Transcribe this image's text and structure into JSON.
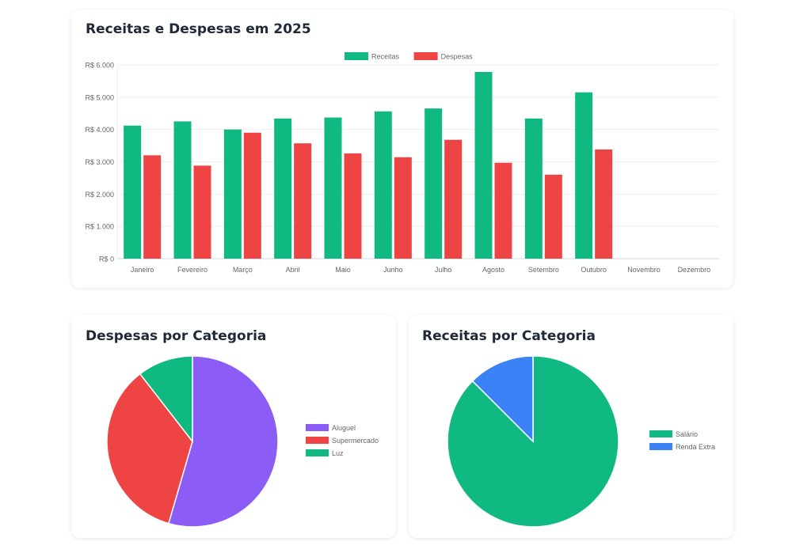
{
  "chart_data": [
    {
      "type": "bar",
      "title": "Receitas e Despesas em 2025",
      "categories": [
        "Janeiro",
        "Fevereiro",
        "Março",
        "Abril",
        "Maio",
        "Junho",
        "Julho",
        "Agosto",
        "Setembro",
        "Outubro",
        "Novembro",
        "Dezembro"
      ],
      "series": [
        {
          "name": "Receitas",
          "color": "#10b981",
          "values": [
            4120,
            4250,
            4000,
            4340,
            4370,
            4560,
            4650,
            5780,
            4340,
            5150,
            null,
            null
          ]
        },
        {
          "name": "Despesas",
          "color": "#ef4444",
          "values": [
            3200,
            2880,
            3900,
            3570,
            3260,
            3140,
            3680,
            2970,
            2600,
            3380,
            null,
            null
          ]
        }
      ],
      "ylim": [
        0,
        6000
      ],
      "yticks": [
        0,
        1000,
        2000,
        3000,
        4000,
        5000,
        6000
      ],
      "ytick_labels": [
        "R$ 0",
        "R$ 1.000",
        "R$ 2.000",
        "R$ 3.000",
        "R$ 4.000",
        "R$ 5.000",
        "R$ 6.000"
      ],
      "legend": "top-center"
    },
    {
      "type": "pie",
      "title": "Despesas por Categoria",
      "labels": [
        "Aluguel",
        "Supermercado",
        "Luz"
      ],
      "values": [
        54.5,
        35.0,
        10.5
      ],
      "colors": [
        "#8b5cf6",
        "#ef4444",
        "#10b981"
      ],
      "legend": "right"
    },
    {
      "type": "pie",
      "title": "Receitas por Categoria",
      "labels": [
        "Salário",
        "Renda Extra"
      ],
      "values": [
        87.5,
        12.5
      ],
      "colors": [
        "#10b981",
        "#3b82f6"
      ],
      "legend": "right"
    }
  ]
}
